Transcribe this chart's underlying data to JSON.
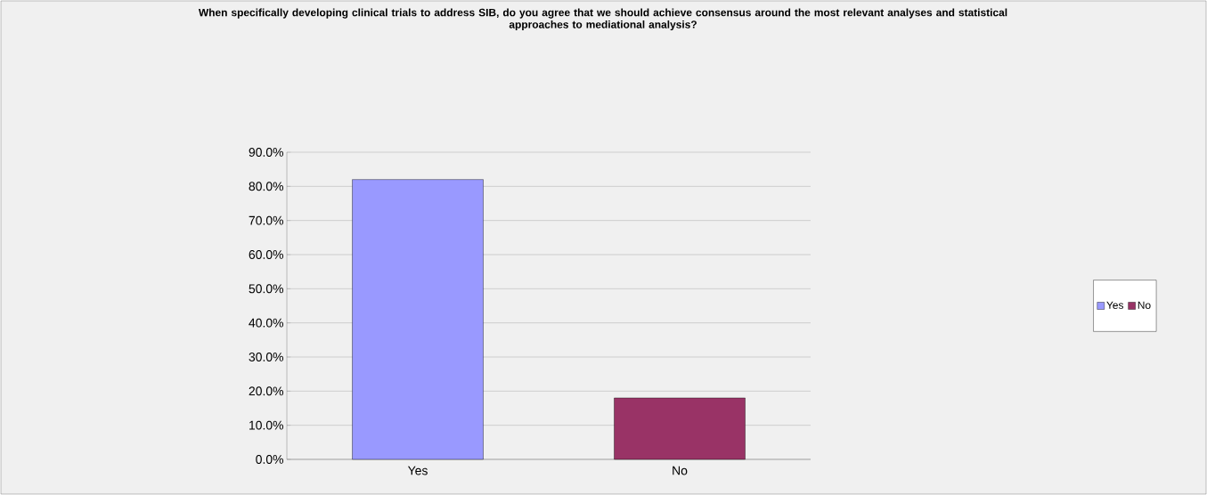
{
  "chart_data": {
    "type": "bar",
    "title": "When specifically developing clinical trials to address SIB, do you agree that we should achieve consensus around the most relevant analyses and statistical approaches to mediational analysis?",
    "categories": [
      "Yes",
      "No"
    ],
    "series": [
      {
        "name": "Yes",
        "color": "#9999ff",
        "values": [
          82,
          null
        ]
      },
      {
        "name": "No",
        "color": "#993366",
        "values": [
          null,
          18
        ]
      }
    ],
    "ylim": [
      0,
      90
    ],
    "yticks": [
      {
        "value": 0,
        "label": "0.0%"
      },
      {
        "value": 10,
        "label": "10.0%"
      },
      {
        "value": 20,
        "label": "20.0%"
      },
      {
        "value": 30,
        "label": "30.0%"
      },
      {
        "value": 40,
        "label": "40.0%"
      },
      {
        "value": 50,
        "label": "50.0%"
      },
      {
        "value": 60,
        "label": "60.0%"
      },
      {
        "value": 70,
        "label": "70.0%"
      },
      {
        "value": 80,
        "label": "80.0%"
      },
      {
        "value": 90,
        "label": "90.0%"
      }
    ],
    "grid": "y",
    "legend": "right"
  }
}
